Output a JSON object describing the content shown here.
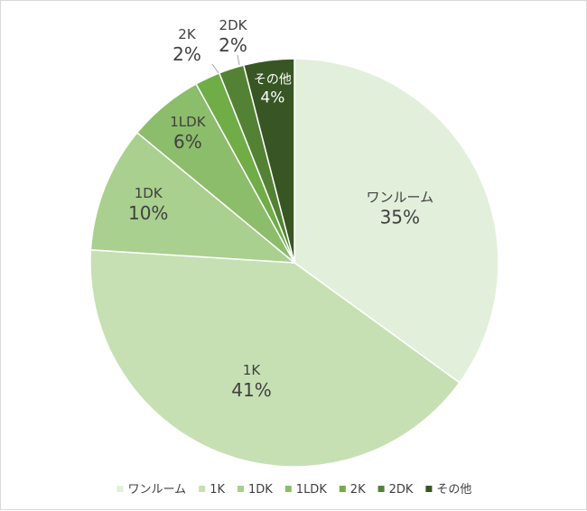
{
  "chart_data": {
    "type": "pie",
    "title": "",
    "slices": [
      {
        "label": "ワンルーム",
        "value": 35,
        "pct_label": "35%",
        "color": "#e2efda"
      },
      {
        "label": "1K",
        "value": 41,
        "pct_label": "41%",
        "color": "#c6e0b4"
      },
      {
        "label": "1DK",
        "value": 10,
        "pct_label": "10%",
        "color": "#a9d08e"
      },
      {
        "label": "1LDK",
        "value": 6,
        "pct_label": "6%",
        "color": "#8cbd6b"
      },
      {
        "label": "2K",
        "value": 2,
        "pct_label": "2%",
        "color": "#70ad47"
      },
      {
        "label": "2DK",
        "value": 2,
        "pct_label": "2%",
        "color": "#548235"
      },
      {
        "label": "その他",
        "value": 4,
        "pct_label": "4%",
        "color": "#375623"
      }
    ],
    "legend_position": "bottom",
    "start_angle": "12 o'clock",
    "direction": "clockwise"
  }
}
